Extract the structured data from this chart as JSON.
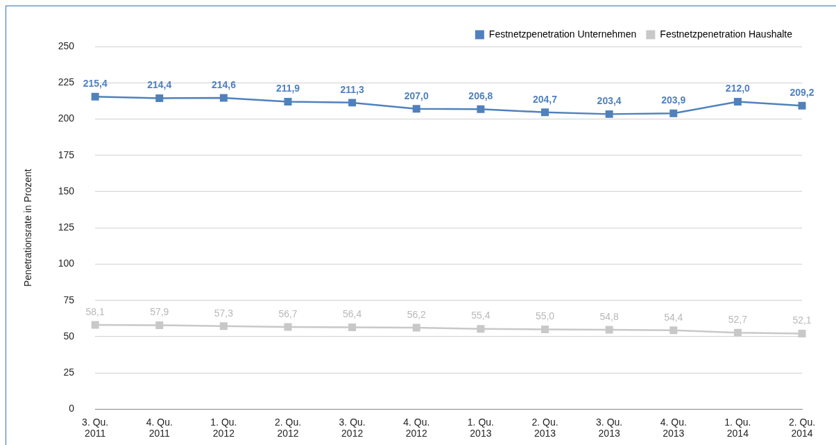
{
  "chart_data": {
    "type": "line",
    "ylabel": "Penetrationsrate in Prozent",
    "categories": [
      "3. Qu.\n2011",
      "4. Qu.\n2011",
      "1. Qu.\n2012",
      "2. Qu.\n2012",
      "3. Qu.\n2012",
      "4. Qu.\n2012",
      "1. Qu.\n2013",
      "2. Qu.\n2013",
      "3. Qu.\n2013",
      "4. Qu.\n2013",
      "1. Qu.\n2014",
      "2. Qu.\n2014"
    ],
    "series": [
      {
        "name": "Festnetzpenetration Unternehmen",
        "color": "#4f81bd",
        "values": [
          215.4,
          214.4,
          214.6,
          211.9,
          211.3,
          207.0,
          206.8,
          204.7,
          203.4,
          203.9,
          212.0,
          209.2
        ],
        "value_labels": [
          "215,4",
          "214,4",
          "214,6",
          "211,9",
          "211,3",
          "207,0",
          "206,8",
          "204,7",
          "203,4",
          "203,9",
          "212,0",
          "209,2"
        ]
      },
      {
        "name": "Festnetzpenetration Haushalte",
        "color": "#c8c8c8",
        "values": [
          58.1,
          57.9,
          57.3,
          56.7,
          56.4,
          56.2,
          55.4,
          55.0,
          54.8,
          54.4,
          52.7,
          52.1
        ],
        "value_labels": [
          "58,1",
          "57,9",
          "57,3",
          "56,7",
          "56,4",
          "56,2",
          "55,4",
          "55,0",
          "54,8",
          "54,4",
          "52,7",
          "52,1"
        ]
      }
    ],
    "ylim": [
      0,
      250
    ],
    "yticks": [
      0,
      25,
      50,
      75,
      100,
      125,
      150,
      175,
      200,
      225,
      250
    ],
    "grid": "y",
    "legend": "top right",
    "marker": "square",
    "line_style": "solid"
  }
}
